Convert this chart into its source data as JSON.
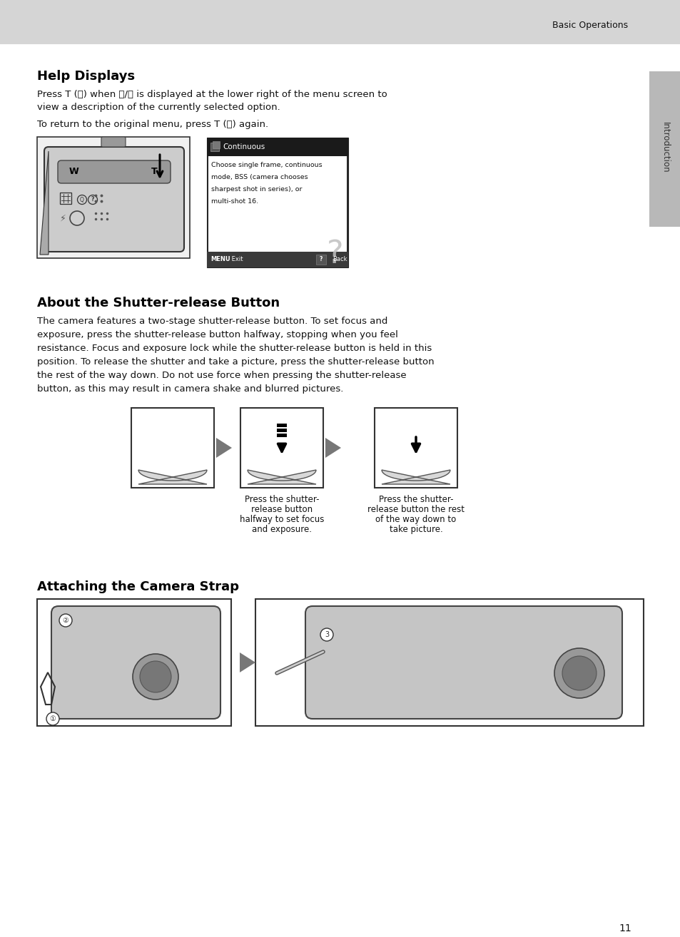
{
  "page_bg": "#ffffff",
  "header_bg": "#d5d5d5",
  "header_text": "Basic Operations",
  "sidebar_bg": "#b8b8b8",
  "page_number": "11",
  "section1_title": "Help Displays",
  "section2_title": "About the Shutter-release Button",
  "section3_title": "Attaching the Camera Strap",
  "intro_text": "Introduction",
  "continuous_title": "Continuous",
  "continuous_text_lines": [
    "Choose single frame, continuous",
    "mode, BSS (camera chooses",
    "sharpest shot in series), or",
    "multi-shot 16."
  ],
  "para1_line1": "Press T (ⓖ) when ⓑ/ⓖ is displayed at the lower right of the menu screen to",
  "para1_line2": "view a description of the currently selected option.",
  "para2": "To return to the original menu, press T (ⓖ) again.",
  "body2_lines": [
    "The camera features a two-stage shutter-release button. To set focus and",
    "exposure, press the shutter-release button halfway, stopping when you feel",
    "resistance. Focus and exposure lock while the shutter-release button is held in this",
    "position. To release the shutter and take a picture, press the shutter-release button",
    "the rest of the way down. Do not use force when pressing the shutter-release",
    "button, as this may result in camera shake and blurred pictures."
  ],
  "cap1_lines": [
    "Press the shutter-",
    "release button",
    "halfway to set focus",
    "and exposure."
  ],
  "cap2_lines": [
    "Press the shutter-",
    "release button the rest",
    "of the way down to",
    "take picture."
  ],
  "title_fs": 13,
  "body_fs": 9.5,
  "cap_fs": 8.5,
  "header_color": "#111111",
  "body_color": "#111111",
  "screen_dark": "#2a2a2a",
  "screen_hdr": "#1a1a1a",
  "screen_menu": "#3a3a3a",
  "box_edge": "#333333",
  "arrow_fill": "#777777",
  "cam_fill": "#cccccc",
  "finger_fill": "#d8d8d8",
  "cam_side_fill": "#aaaaaa"
}
